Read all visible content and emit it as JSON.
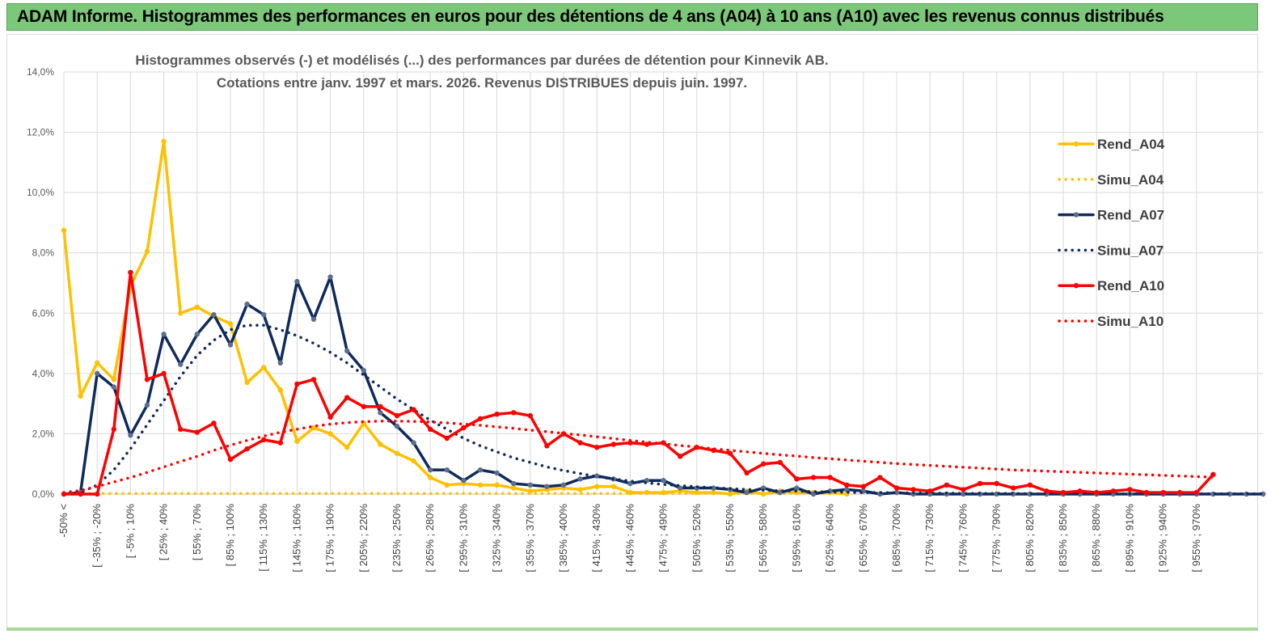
{
  "banner": {
    "title": "ADAM Informe. Histogrammes des performances en euros pour des détentions de 4 ans (A04) à 10 ans (A10) avec les revenus connus distribués"
  },
  "chart_data": {
    "type": "line",
    "title_line1": "Histogrammes observés (-) et modélisés (...) des performances par durées de détention pour Kinnevik AB.",
    "title_line2": "Cotations entre janv. 1997 et mars. 2026. Revenus DISTRIBUES depuis juin. 1997.",
    "ylim": [
      0,
      14
    ],
    "yticks": [
      "0,0%",
      "2,0%",
      "4,0%",
      "6,0%",
      "8,0%",
      "10,0%",
      "12,0%",
      "14,0%"
    ],
    "ytick_values": [
      0,
      2,
      4,
      6,
      8,
      10,
      12,
      14
    ],
    "n_points": 73,
    "xtick_labels": [
      "-50% <",
      "[ -35% ; -20%",
      "[ -5% ; 10%",
      "[ 25% ; 40%",
      "[ 55% ; 70%",
      "[ 85% ; 100%",
      "[ 115% ; 130%",
      "[ 145% ; 160%",
      "[ 175% ; 190%",
      "[ 205% ; 220%",
      "[ 235% ; 250%",
      "[ 265% ; 280%",
      "[ 295% ; 310%",
      "[ 325% ; 340%",
      "[ 355% ; 370%",
      "[ 385% ; 400%",
      "[ 415% ; 430%",
      "[ 445% ; 460%",
      "[ 475% ; 490%",
      "[ 505% ; 520%",
      "[ 535% ; 550%",
      "[ 565% ; 580%",
      "[ 595% ; 610%",
      "[ 625% ; 640%",
      "[ 655% ; 670%",
      "[ 685% ; 700%",
      "[ 715% ; 730%",
      "[ 745% ; 760%",
      "[ 775% ; 790%",
      "[ 805% ; 820%",
      "[ 835% ; 850%",
      "[ 865% ; 880%",
      "[ 895% ; 910%",
      "[ 925% ; 940%",
      "[ 955% ; 970%"
    ],
    "xtick_indices": [
      0,
      2,
      4,
      6,
      8,
      10,
      12,
      14,
      16,
      18,
      20,
      22,
      24,
      26,
      28,
      30,
      32,
      34,
      36,
      38,
      40,
      42,
      44,
      46,
      48,
      50,
      52,
      54,
      56,
      58,
      60,
      62,
      64,
      66,
      68
    ],
    "series": [
      {
        "name": "Rend_A04",
        "style": "solid",
        "color": "#ffc000",
        "values": [
          8.75,
          3.25,
          4.35,
          3.8,
          6.9,
          8.05,
          11.7,
          6.0,
          6.2,
          5.9,
          5.65,
          3.7,
          4.2,
          3.45,
          1.75,
          2.2,
          2.0,
          1.55,
          2.35,
          1.65,
          1.35,
          1.1,
          0.55,
          0.3,
          0.35,
          0.3,
          0.3,
          0.2,
          0.1,
          0.15,
          0.2,
          0.15,
          0.25,
          0.25,
          0.05,
          0.05,
          0.05,
          0.1,
          0.05,
          0.05,
          0.0,
          0.1,
          0.0,
          0.1,
          0.05,
          0.05,
          0.05,
          0.0
        ]
      },
      {
        "name": "Simu_A04",
        "style": "dotted",
        "color": "#ffc000",
        "values": [
          0.02,
          0.02,
          0.02,
          0.02,
          0.02,
          0.02,
          0.02,
          0.02,
          0.02,
          0.02,
          0.02,
          0.02,
          0.02,
          0.02,
          0.02,
          0.02,
          0.02,
          0.02,
          0.02,
          0.02,
          0.02,
          0.02,
          0.02,
          0.02,
          0.02,
          0.02,
          0.02,
          0.02,
          0.02,
          0.02,
          0.02,
          0.02,
          0.02,
          0.02,
          0.02,
          0.02,
          0.02,
          0.02,
          0.02,
          0.02,
          0.02,
          0.02,
          0.02,
          0.02,
          0.02,
          0.02,
          0.02,
          0.02
        ]
      },
      {
        "name": "Rend_A07",
        "style": "solid",
        "color": "#0f2a5c",
        "values": [
          0.0,
          0.05,
          4.0,
          3.55,
          1.95,
          2.95,
          5.3,
          4.3,
          5.3,
          5.95,
          4.95,
          6.3,
          5.95,
          4.35,
          7.05,
          5.8,
          7.2,
          4.75,
          4.1,
          2.7,
          2.25,
          1.7,
          0.8,
          0.8,
          0.45,
          0.8,
          0.7,
          0.35,
          0.3,
          0.25,
          0.3,
          0.5,
          0.6,
          0.5,
          0.35,
          0.45,
          0.45,
          0.2,
          0.2,
          0.2,
          0.15,
          0.05,
          0.2,
          0.05,
          0.2,
          0.0,
          0.1,
          0.15,
          0.1,
          0.0,
          0.05,
          0.0,
          0.0,
          0.0,
          0.0,
          0.0,
          0.0,
          0.0,
          0.0,
          0.0,
          0.0,
          0.0,
          0.0,
          0.0,
          0.0,
          0.0,
          0.0,
          0.0,
          0.0,
          0.0,
          0.0,
          0.0,
          0.0
        ]
      },
      {
        "name": "Simu_A07",
        "style": "dotted",
        "color": "#0f2a5c",
        "values": [
          0.0,
          0.05,
          0.3,
          0.8,
          1.5,
          2.3,
          3.1,
          3.9,
          4.6,
          5.1,
          5.45,
          5.6,
          5.6,
          5.45,
          5.25,
          5.0,
          4.7,
          4.35,
          3.95,
          3.55,
          3.15,
          2.8,
          2.45,
          2.15,
          1.85,
          1.6,
          1.4,
          1.2,
          1.05,
          0.9,
          0.78,
          0.68,
          0.58,
          0.5,
          0.43,
          0.37,
          0.32,
          0.28,
          0.24,
          0.21,
          0.18,
          0.15,
          0.13,
          0.11,
          0.1,
          0.08,
          0.07,
          0.06,
          0.05,
          0.05,
          0.04,
          0.04,
          0.03,
          0.03,
          0.02,
          0.02,
          0.02,
          0.02,
          0.01,
          0.01,
          0.01,
          0.01,
          0.01,
          0.01,
          0.01,
          0.01,
          0.01,
          0.01,
          0.01,
          0.01,
          0.01,
          0.01,
          0.01
        ]
      },
      {
        "name": "Rend_A10",
        "style": "solid",
        "color": "#ff0000",
        "values": [
          0.0,
          0.0,
          0.0,
          2.15,
          7.35,
          3.8,
          4.0,
          2.15,
          2.05,
          2.35,
          1.15,
          1.5,
          1.8,
          1.7,
          3.65,
          3.8,
          2.55,
          3.2,
          2.9,
          2.9,
          2.6,
          2.8,
          2.15,
          1.85,
          2.2,
          2.5,
          2.65,
          2.7,
          2.6,
          1.6,
          2.0,
          1.7,
          1.55,
          1.65,
          1.7,
          1.65,
          1.7,
          1.25,
          1.55,
          1.45,
          1.35,
          0.7,
          1.0,
          1.05,
          0.5,
          0.55,
          0.55,
          0.3,
          0.25,
          0.55,
          0.2,
          0.15,
          0.1,
          0.3,
          0.15,
          0.35,
          0.35,
          0.2,
          0.3,
          0.1,
          0.05,
          0.1,
          0.05,
          0.1,
          0.15,
          0.05,
          0.05,
          0.05,
          0.05,
          0.65
        ]
      },
      {
        "name": "Simu_A10",
        "style": "dotted",
        "color": "#ff0000",
        "values": [
          0.05,
          0.12,
          0.25,
          0.4,
          0.55,
          0.72,
          0.9,
          1.08,
          1.25,
          1.45,
          1.62,
          1.78,
          1.92,
          2.05,
          2.15,
          2.25,
          2.32,
          2.37,
          2.4,
          2.42,
          2.42,
          2.41,
          2.39,
          2.36,
          2.32,
          2.28,
          2.23,
          2.18,
          2.12,
          2.07,
          2.01,
          1.96,
          1.9,
          1.84,
          1.78,
          1.72,
          1.67,
          1.61,
          1.56,
          1.5,
          1.45,
          1.4,
          1.35,
          1.3,
          1.26,
          1.21,
          1.17,
          1.13,
          1.09,
          1.05,
          1.01,
          0.98,
          0.95,
          0.92,
          0.89,
          0.86,
          0.83,
          0.8,
          0.78,
          0.76,
          0.74,
          0.72,
          0.7,
          0.68,
          0.66,
          0.64,
          0.62,
          0.6,
          0.58,
          0.56
        ]
      }
    ]
  }
}
